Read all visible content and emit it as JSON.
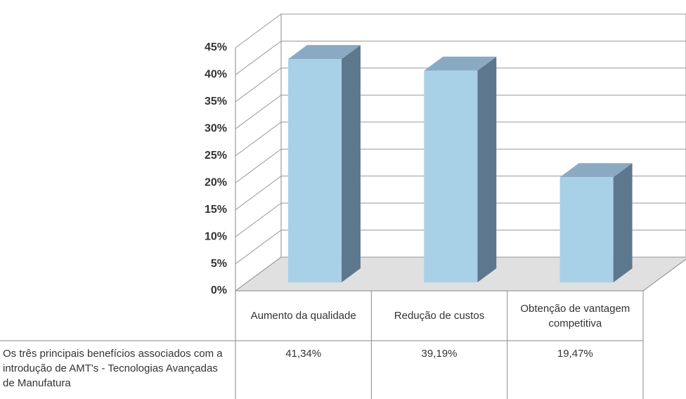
{
  "chart_data": {
    "type": "bar3d",
    "categories": [
      "Aumento da qualidade",
      "Redução de custos",
      "Obtenção de vantagem competitiva"
    ],
    "series": [
      {
        "name": "Os três principais benefícios associados com a introdução de AMT's - Tecnologias Avançadas de Manufatura",
        "color": "#a8d1e8",
        "values": [
          41.34,
          39.19,
          19.47
        ],
        "value_labels": [
          "41,34%",
          "39,19%",
          "19,47%"
        ]
      }
    ],
    "ylim": [
      0,
      45
    ],
    "yticks": [
      {
        "value": 0,
        "label": "0%"
      },
      {
        "value": 5,
        "label": "5%"
      },
      {
        "value": 10,
        "label": "10%"
      },
      {
        "value": 15,
        "label": "15%"
      },
      {
        "value": 20,
        "label": "20%"
      },
      {
        "value": 25,
        "label": "25%"
      },
      {
        "value": 30,
        "label": "30%"
      },
      {
        "value": 35,
        "label": "35%"
      },
      {
        "value": 40,
        "label": "40%"
      },
      {
        "value": 45,
        "label": "45%"
      }
    ],
    "grid": true
  }
}
